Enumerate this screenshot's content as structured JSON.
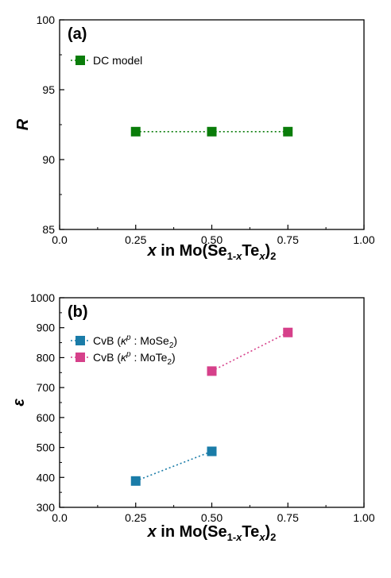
{
  "chart_data": [
    {
      "type": "scatter",
      "panel_label": "(a)",
      "x_label": {
        "x": "x",
        "rest": " in Mo(Se",
        "sub1": "1-",
        "subx": "x",
        "mid": "Te",
        "sub2": "x",
        "close": ")",
        "sub3": "2"
      },
      "y_label": "R",
      "xlim": [
        0,
        1
      ],
      "ylim": [
        85,
        100
      ],
      "x_ticks": [
        "0.0",
        "0.25",
        "0.50",
        "0.75",
        "1.00"
      ],
      "x_tick_values": [
        0,
        0.25,
        0.5,
        0.75,
        1.0
      ],
      "y_ticks": [
        "85",
        "90",
        "95",
        "100"
      ],
      "y_tick_values": [
        85,
        90,
        95,
        100
      ],
      "legend_placement": "top-left",
      "series": [
        {
          "name": "DC model",
          "color": "#0a7d0a",
          "x": [
            0.25,
            0.5,
            0.75
          ],
          "y": [
            92,
            92,
            92
          ]
        }
      ]
    },
    {
      "type": "scatter",
      "panel_label": "(b)",
      "x_label": {
        "x": "x",
        "rest": " in Mo(Se",
        "sub1": "1-",
        "subx": "x",
        "mid": "Te",
        "sub2": "x",
        "close": ")",
        "sub3": "2"
      },
      "y_label": "ε",
      "xlim": [
        0,
        1
      ],
      "ylim": [
        300,
        1000
      ],
      "x_ticks": [
        "0.0",
        "0.25",
        "0.50",
        "0.75",
        "1.00"
      ],
      "x_tick_values": [
        0,
        0.25,
        0.5,
        0.75,
        1.0
      ],
      "y_ticks": [
        "300",
        "400",
        "500",
        "600",
        "700",
        "800",
        "900",
        "1000"
      ],
      "y_tick_values": [
        300,
        400,
        500,
        600,
        700,
        800,
        900,
        1000
      ],
      "legend_placement": "top-left",
      "series": [
        {
          "name_prefix": "CvB (",
          "kappa": "κ",
          "kappa_sup": "p",
          "name_mid": " : MoSe",
          "name_sub": "2",
          "name_suffix": ")",
          "color": "#1a7ca8",
          "x": [
            0.25,
            0.5
          ],
          "y": [
            388,
            487
          ]
        },
        {
          "name_prefix": "CvB (",
          "kappa": "κ",
          "kappa_sup": "p",
          "name_mid": " : MoTe",
          "name_sub": "2",
          "name_suffix": ")",
          "color": "#d6408a",
          "x": [
            0.5,
            0.75
          ],
          "y": [
            755,
            884
          ]
        }
      ]
    }
  ]
}
